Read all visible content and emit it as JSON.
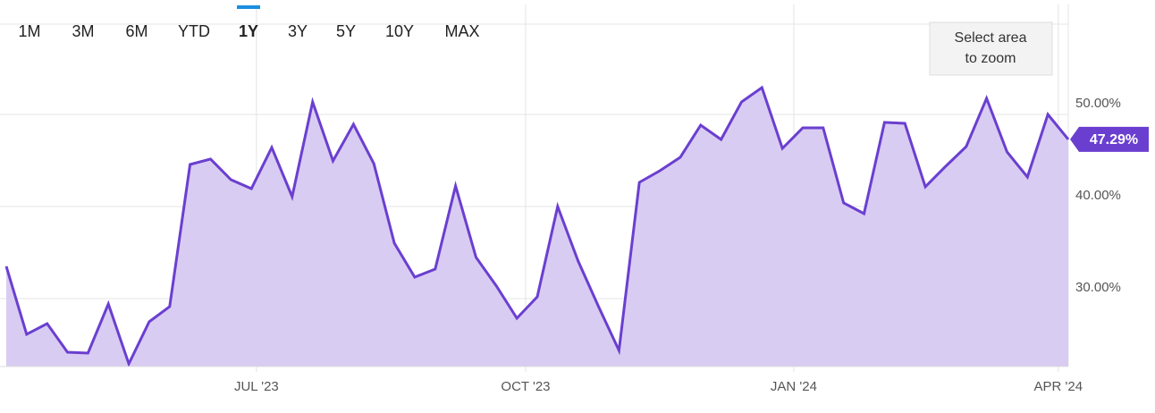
{
  "range_selector": [
    {
      "label": "1M",
      "state": "normal"
    },
    {
      "label": "3M",
      "state": "normal"
    },
    {
      "label": "6M",
      "state": "normal"
    },
    {
      "label": "YTD",
      "state": "normal"
    },
    {
      "label": "1Y",
      "state": "active"
    },
    {
      "label": "3Y",
      "state": "normal"
    },
    {
      "label": "5Y",
      "state": "normal"
    },
    {
      "label": "10Y",
      "state": "disabled"
    },
    {
      "label": "MAX",
      "state": "disabled"
    }
  ],
  "zoom_hint": [
    "Select area",
    "to zoom"
  ],
  "chart_data": {
    "type": "area",
    "color": "#6a3fd0",
    "fill": "#d9ccf2",
    "categories": [
      null,
      null,
      null,
      null,
      null,
      null,
      null,
      null,
      null,
      null,
      null,
      null,
      null,
      null,
      null,
      null,
      null,
      null,
      null,
      null,
      null,
      null,
      null,
      null,
      null,
      null,
      null,
      null,
      null,
      null,
      null,
      null,
      null,
      null,
      null,
      null,
      null,
      null,
      null,
      null,
      null,
      null,
      null,
      null,
      null,
      null,
      null,
      null,
      null,
      null,
      null,
      null,
      null
    ],
    "values": [
      33.5,
      26.12,
      27.28,
      24.17,
      24.08,
      29.42,
      22.91,
      27.48,
      29.13,
      44.56,
      45.15,
      42.91,
      41.94,
      46.41,
      41.07,
      51.36,
      44.95,
      48.93,
      44.66,
      36.02,
      32.33,
      33.2,
      42.23,
      34.47,
      31.36,
      27.86,
      30.19,
      40.0,
      34.08,
      29.13,
      24.37,
      42.62,
      43.88,
      45.34,
      48.83,
      47.28,
      51.36,
      52.91,
      46.31,
      48.54,
      48.54,
      40.39,
      39.22,
      49.13,
      49.03,
      42.14,
      44.37,
      46.5,
      51.75,
      45.92,
      43.2,
      50.0,
      47.29
    ],
    "value_labels": [
      null,
      null,
      null,
      null,
      null,
      null,
      null,
      null,
      null,
      null,
      null,
      null,
      null,
      null,
      null,
      null,
      null,
      null,
      null,
      null,
      null,
      null,
      null,
      null,
      null,
      null,
      null,
      null,
      null,
      null,
      null,
      null,
      null,
      null,
      null,
      null,
      null,
      null,
      null,
      null,
      null,
      null,
      null,
      null,
      null,
      null,
      null,
      null,
      null,
      null,
      null,
      null,
      "47.29%"
    ],
    "xlim": [
      0,
      52
    ],
    "xticks": [
      {
        "value": 12.25,
        "label": "JUL '23"
      },
      {
        "value": 25.43,
        "label": "OCT '23"
      },
      {
        "value": 38.56,
        "label": "JAN '24"
      },
      {
        "value": 51.51,
        "label": "APR '24"
      }
    ],
    "ylim": [
      22.62,
      61.94
    ],
    "yticks": [
      {
        "value": 30,
        "label": "30.00%"
      },
      {
        "value": 40,
        "label": "40.00%"
      },
      {
        "value": 50,
        "label": "50.00%"
      }
    ],
    "grid": true
  }
}
